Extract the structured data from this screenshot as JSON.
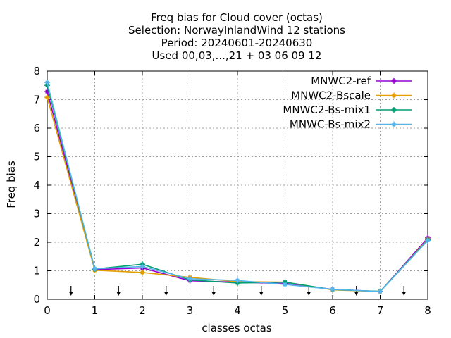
{
  "chart_data": {
    "type": "line",
    "title_lines": [
      "Freq bias  for Cloud cover (octas)",
      "Selection: NorwayInlandWind     12 stations",
      "Period: 20240601-20240630",
      "Used 00,03,...,21 + 03 06 09 12"
    ],
    "xlabel": "classes octas",
    "ylabel": "Freq bias",
    "xlim": [
      0,
      8
    ],
    "ylim": [
      0,
      8
    ],
    "xticks": [
      0,
      1,
      2,
      3,
      4,
      5,
      6,
      7,
      8
    ],
    "yticks": [
      0,
      1,
      2,
      3,
      4,
      5,
      6,
      7,
      8
    ],
    "grid": true,
    "legend_position": "top-right",
    "x": [
      0,
      1,
      2,
      3,
      4,
      5,
      6,
      7,
      8
    ],
    "series": [
      {
        "name": "MNWC2-ref",
        "color": "#9400d3",
        "values": [
          7.28,
          1.04,
          1.1,
          0.65,
          0.6,
          0.55,
          0.35,
          0.27,
          2.15
        ]
      },
      {
        "name": "MNWC2-Bscale",
        "color": "#e69f00",
        "values": [
          7.08,
          1.02,
          0.94,
          0.77,
          0.62,
          0.6,
          0.33,
          0.27,
          2.1
        ]
      },
      {
        "name": "MNWC2-Bs-mix1",
        "color": "#009e73",
        "values": [
          7.5,
          1.06,
          1.23,
          0.68,
          0.57,
          0.6,
          0.34,
          0.28,
          2.08
        ]
      },
      {
        "name": "MNWC-Bs-mix2",
        "color": "#56b4e9",
        "values": [
          7.6,
          1.07,
          1.15,
          0.72,
          0.66,
          0.52,
          0.35,
          0.27,
          2.06
        ]
      }
    ],
    "arrow_marker_x": [
      0.5,
      1.5,
      2.5,
      3.5,
      4.5,
      5.5,
      6.5,
      7.5
    ]
  }
}
